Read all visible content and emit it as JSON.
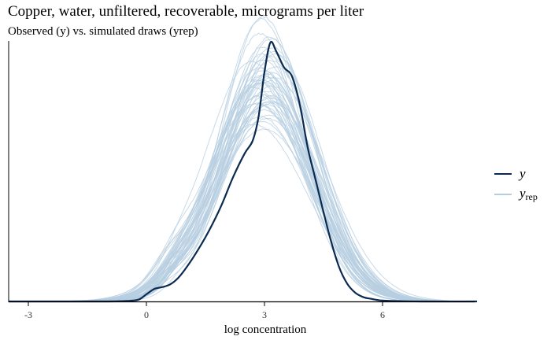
{
  "title": "Copper, water, unfiltered, recoverable, micrograms per liter",
  "subtitle": "Observed (y) vs. simulated draws (yrep)",
  "colors": {
    "observed": "#0b2a50",
    "replicated": "#b6cde0",
    "axis": "#000000"
  },
  "legend": {
    "observed_label": "y",
    "replicated_label": "y",
    "replicated_sub": "rep"
  },
  "chart_data": {
    "type": "line",
    "title": "Copper, water, unfiltered, recoverable, micrograms per liter",
    "subtitle": "Observed (y) vs. simulated draws (yrep)",
    "xlabel": "log concentration",
    "ylabel": "",
    "xlim": [
      -3.5,
      8.4
    ],
    "ylim": [
      0,
      0.29
    ],
    "x_ticks": [
      -3,
      0,
      3,
      6
    ],
    "x_tick_labels": [
      "-3",
      "0",
      "3",
      "6"
    ],
    "grid": false,
    "legend_position": "right",
    "n_yrep_draws": 50,
    "series": [
      {
        "name": "y",
        "role": "observed",
        "x": [
          -3.5,
          -2.0,
          -1.0,
          -0.5,
          -0.2,
          0.0,
          0.2,
          0.4,
          0.6,
          0.8,
          1.0,
          1.3,
          1.6,
          1.9,
          2.2,
          2.5,
          2.7,
          2.85,
          3.0,
          3.15,
          3.3,
          3.5,
          3.7,
          3.9,
          4.1,
          4.3,
          4.5,
          4.7,
          4.9,
          5.1,
          5.3,
          5.5,
          5.7,
          6.0,
          6.5,
          7.0,
          8.4
        ],
        "y": [
          0,
          0,
          0,
          0.0005,
          0.002,
          0.008,
          0.014,
          0.016,
          0.019,
          0.026,
          0.037,
          0.057,
          0.08,
          0.107,
          0.139,
          0.166,
          0.18,
          0.207,
          0.257,
          0.29,
          0.28,
          0.262,
          0.252,
          0.22,
          0.172,
          0.136,
          0.1,
          0.066,
          0.038,
          0.02,
          0.01,
          0.005,
          0.003,
          0.001,
          0.0003,
          0,
          0
        ]
      },
      {
        "name": "y_rep",
        "role": "replicated",
        "mean": 3.05,
        "sd": 1.22,
        "peak_range": [
          0.21,
          0.26
        ]
      }
    ]
  },
  "axis": {
    "xlabel": "log concentration"
  }
}
